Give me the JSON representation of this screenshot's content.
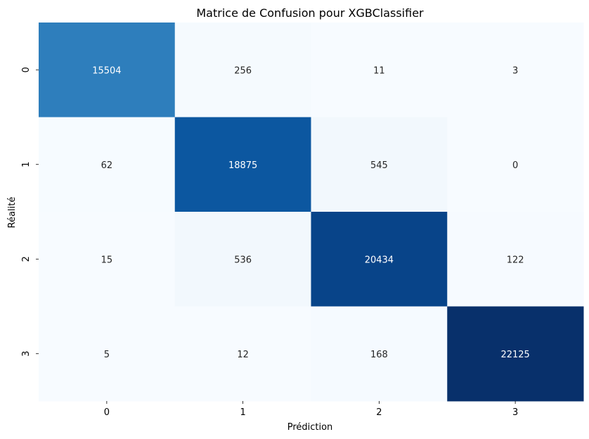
{
  "chart_data": {
    "type": "heatmap",
    "title": "Matrice de Confusion pour XGBClassifier",
    "xlabel": "Prédiction",
    "ylabel": "Réalité",
    "x_categories": [
      "0",
      "1",
      "2",
      "3"
    ],
    "y_categories": [
      "0",
      "1",
      "2",
      "3"
    ],
    "values": [
      [
        15504,
        256,
        11,
        3
      ],
      [
        62,
        18875,
        545,
        0
      ],
      [
        15,
        536,
        20434,
        122
      ],
      [
        5,
        12,
        168,
        22125
      ]
    ],
    "colormap": "Blues",
    "colorbar": false,
    "grid": false
  }
}
